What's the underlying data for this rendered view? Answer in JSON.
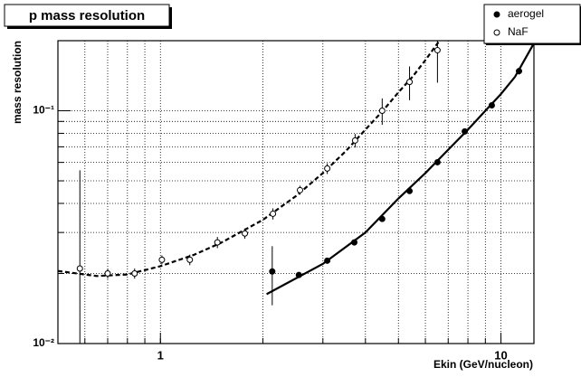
{
  "chart_data": {
    "type": "scatter",
    "title": "p mass resolution",
    "xlabel": "Ekin (GeV/nucleon)",
    "ylabel": "mass resolution",
    "xlog": true,
    "ylog": true,
    "grid": true,
    "xlim": [
      0.5,
      12.5
    ],
    "ylim": [
      0.01,
      0.2
    ],
    "xticks": [
      1,
      10
    ],
    "yticks": [
      {
        "value": 0.01,
        "label": "10⁻²"
      },
      {
        "value": 0.1,
        "label": "10⁻¹"
      }
    ],
    "xgrid": [
      0.6,
      0.7,
      0.8,
      0.9,
      1,
      2,
      3,
      4,
      5,
      6,
      7,
      8,
      9,
      10
    ],
    "ygrid": [
      0.02,
      0.03,
      0.04,
      0.05,
      0.06,
      0.07,
      0.08,
      0.09,
      0.1
    ],
    "legend": "top-right",
    "series": [
      {
        "name": "aerogel",
        "marker": "filled",
        "color": "#000000",
        "x": [
          2.13,
          2.55,
          3.09,
          3.71,
          4.48,
          5.39,
          6.51,
          7.83,
          9.4,
          11.3
        ],
        "values": [
          0.0204,
          0.0197,
          0.0227,
          0.0272,
          0.0343,
          0.0452,
          0.0601,
          0.0815,
          0.1055,
          0.148
        ],
        "errors": [
          0.0058,
          0.0005,
          0.0005,
          0.0007,
          0.001,
          0.0013,
          0.0018,
          0.0025,
          0.003,
          0.005
        ]
      },
      {
        "name": "NaF",
        "marker": "open",
        "color": "#000000",
        "x": [
          0.58,
          0.7,
          0.84,
          1.01,
          1.22,
          1.47,
          1.77,
          2.14,
          2.57,
          3.09,
          3.73,
          4.48,
          5.39,
          6.51
        ],
        "values": [
          0.021,
          0.02,
          0.02,
          0.0229,
          0.0229,
          0.0272,
          0.0297,
          0.0361,
          0.0456,
          0.0565,
          0.0745,
          0.1,
          0.133,
          0.182
        ],
        "errors": [
          0.0345,
          0.001,
          0.001,
          0.001,
          0.0012,
          0.0015,
          0.0015,
          0.002,
          0.002,
          0.003,
          0.005,
          0.013,
          0.022,
          0.05
        ]
      }
    ],
    "fits": [
      {
        "dashed": false,
        "color": "#000000",
        "x": [
          2.05,
          3,
          4,
          5,
          6,
          7,
          8,
          9,
          10,
          11,
          12.5
        ],
        "values": [
          0.0163,
          0.022,
          0.03,
          0.042,
          0.054,
          0.068,
          0.083,
          0.1,
          0.118,
          0.14,
          0.195
        ]
      },
      {
        "dashed": true,
        "color": "#000000",
        "x": [
          0.5,
          0.65,
          0.8,
          1,
          1.25,
          1.5,
          2,
          2.5,
          3,
          3.5,
          4,
          4.5,
          5,
          5.5,
          6,
          6.6
        ],
        "values": [
          0.0205,
          0.0195,
          0.0198,
          0.0215,
          0.024,
          0.027,
          0.034,
          0.043,
          0.054,
          0.067,
          0.083,
          0.1,
          0.12,
          0.14,
          0.165,
          0.2
        ]
      }
    ]
  }
}
